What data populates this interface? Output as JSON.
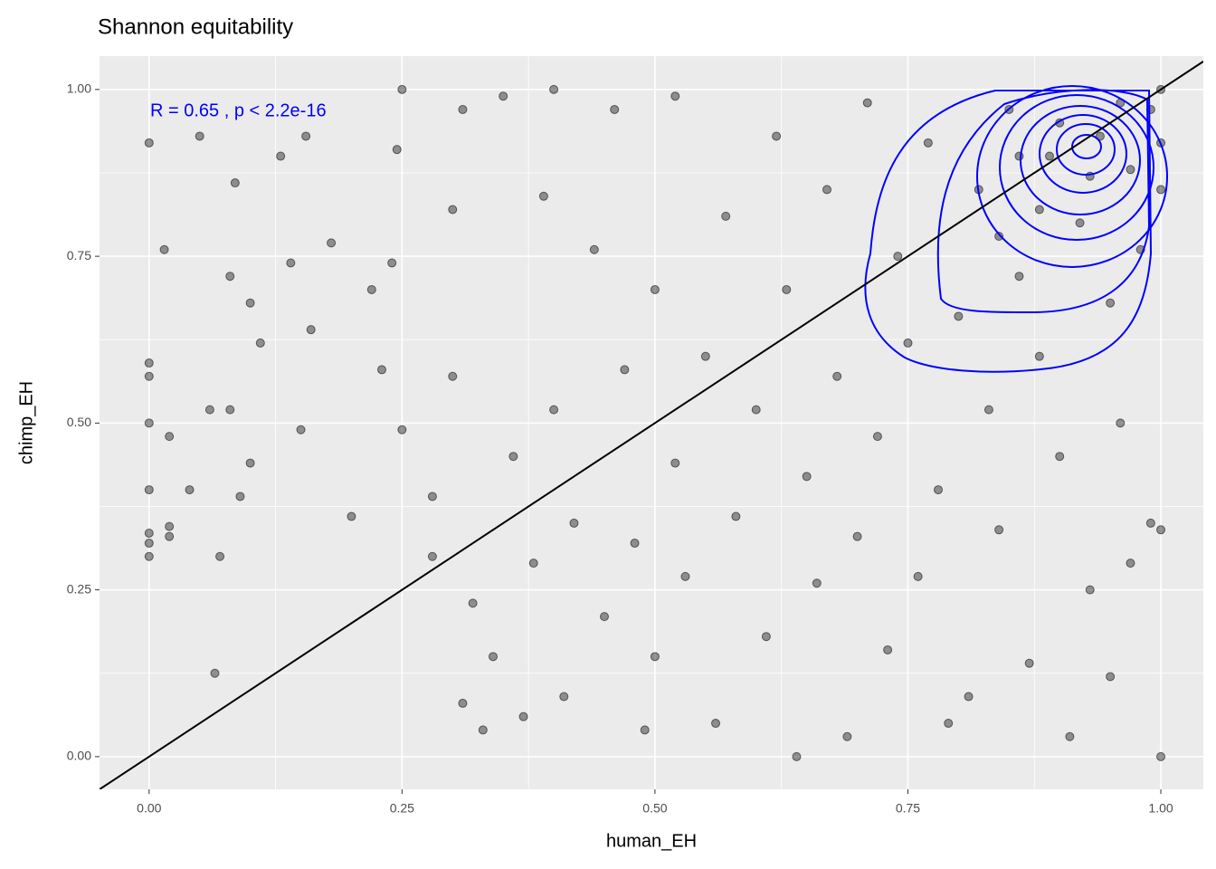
{
  "chart_data": {
    "type": "scatter",
    "title": "Shannon equitability",
    "x_label": "human_EH",
    "y_label": "chimp_EH",
    "annotation": "R = 0.65 , p < 2.2e-16",
    "annotation_color": "#0000ff",
    "xlim": [
      -0.049,
      1.042
    ],
    "ylim": [
      -0.049,
      1.05
    ],
    "xticks": [
      {
        "value": 0,
        "label": "0.00"
      },
      0.25,
      {
        "value": 0.5,
        "label": "0.50"
      },
      0.75,
      {
        "value": 1,
        "label": "1.00"
      }
    ],
    "yticks": [
      {
        "value": 0,
        "label": "0.00"
      },
      0.25,
      {
        "value": 0.5,
        "label": "0.50"
      },
      0.75,
      {
        "value": 1,
        "label": "1.00"
      }
    ],
    "x_minor_grid": [
      0.125,
      0.375,
      0.625,
      0.875
    ],
    "y_minor_grid": [
      0.125,
      0.375,
      0.625,
      0.875
    ],
    "grid": true,
    "reference_line": {
      "slope": 1,
      "intercept": 0
    },
    "series": [
      {
        "color": "#000000",
        "x": [
          0,
          0,
          0,
          0,
          0,
          0,
          0,
          0,
          0.02,
          0.02,
          0.02,
          0.015,
          0.04,
          0.05,
          0.06,
          0.065,
          0.07,
          0.08,
          0.08,
          0.085,
          0.09,
          0.1,
          0.1,
          0.11,
          0.13,
          0.14,
          0.15,
          0.155,
          0.16,
          0.18,
          0.2,
          0.22,
          0.23,
          0.24,
          0.245,
          0.25,
          0.25,
          0.28,
          0.28,
          0.3,
          0.3,
          0.31,
          0.31,
          0.32,
          0.33,
          0.34,
          0.35,
          0.36,
          0.37,
          0.38,
          0.39,
          0.4,
          0.4,
          0.41,
          0.42,
          0.44,
          0.45,
          0.46,
          0.47,
          0.48,
          0.49,
          0.5,
          0.5,
          0.52,
          0.52,
          0.53,
          0.55,
          0.56,
          0.57,
          0.58,
          0.6,
          0.61,
          0.62,
          0.63,
          0.64,
          0.65,
          0.66,
          0.67,
          0.68,
          0.69,
          0.7,
          0.71,
          0.72,
          0.73,
          0.74,
          0.75,
          0.76,
          0.77,
          0.78,
          0.79,
          0.8,
          0.81,
          0.82,
          0.83,
          0.84,
          0.85,
          0.86,
          0.87,
          0.88,
          0.89,
          0.9,
          0.91,
          0.92,
          0.93,
          0.94,
          0.95,
          0.96,
          0.97,
          0.98,
          0.99,
          1,
          1,
          1,
          1,
          1,
          0.99,
          0.96,
          0.93,
          0.9,
          0.88,
          0.86,
          0.84,
          0.95,
          0.97
        ],
        "y": [
          0.92,
          0.59,
          0.57,
          0.5,
          0.4,
          0.335,
          0.32,
          0.3,
          0.48,
          0.345,
          0.33,
          0.76,
          0.4,
          0.93,
          0.52,
          0.125,
          0.3,
          0.72,
          0.52,
          0.86,
          0.39,
          0.68,
          0.44,
          0.62,
          0.9,
          0.74,
          0.49,
          0.93,
          0.64,
          0.77,
          0.36,
          0.7,
          0.58,
          0.74,
          0.91,
          1,
          0.49,
          0.3,
          0.39,
          0.82,
          0.57,
          0.97,
          0.08,
          0.23,
          0.04,
          0.15,
          0.99,
          0.45,
          0.06,
          0.29,
          0.84,
          0.52,
          1,
          0.09,
          0.35,
          0.76,
          0.21,
          0.97,
          0.58,
          0.32,
          0.04,
          0.7,
          0.15,
          0.44,
          0.99,
          0.27,
          0.6,
          0.05,
          0.81,
          0.36,
          0.52,
          0.18,
          0.93,
          0.7,
          0,
          0.42,
          0.26,
          0.85,
          0.57,
          0.03,
          0.33,
          0.98,
          0.48,
          0.16,
          0.75,
          0.62,
          0.27,
          0.92,
          0.4,
          0.05,
          0.66,
          0.09,
          0.85,
          0.52,
          0.34,
          0.97,
          0.72,
          0.14,
          0.6,
          0.9,
          0.45,
          0.03,
          0.8,
          0.25,
          0.93,
          0.68,
          0.5,
          0.88,
          0.76,
          0.35,
          1,
          0,
          0.92,
          0.85,
          0.34,
          0.97,
          0.98,
          0.87,
          0.95,
          0.82,
          0.9,
          0.78,
          0.12,
          0.29
        ]
      }
    ]
  }
}
